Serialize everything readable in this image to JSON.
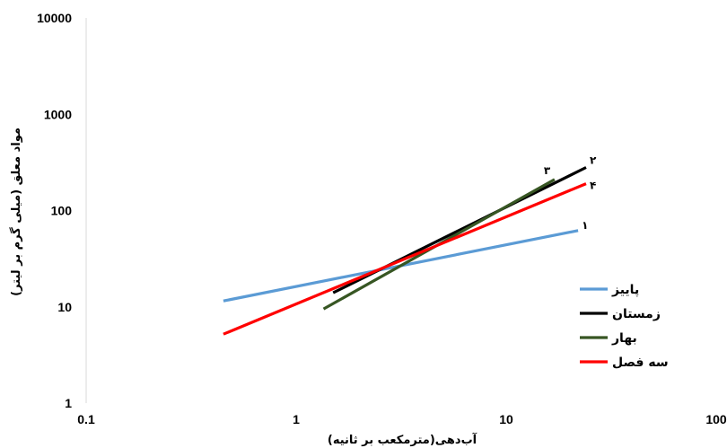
{
  "chart_data": {
    "type": "line",
    "xscale": "log",
    "yscale": "log",
    "xlim": [
      0.1,
      100
    ],
    "ylim": [
      1,
      10000
    ],
    "xticks": [
      "0.1",
      "1",
      "10",
      "100"
    ],
    "yticks": [
      "1",
      "10",
      "100",
      "1000",
      "10000"
    ],
    "xlabel": "آب‌دهی(مترمکعب بر ثانیه)",
    "ylabel": "مواد معلق (میلی گرم بر لیتر)",
    "grid": false,
    "legend_position": "right",
    "series": [
      {
        "name": "پاییز",
        "label": "۱",
        "color": "#5b9bd5",
        "x": [
          0.45,
          22
        ],
        "y": [
          11.5,
          62
        ]
      },
      {
        "name": "زمستان",
        "label": "۲",
        "color": "#000000",
        "x": [
          1.5,
          24
        ],
        "y": [
          14,
          280
        ]
      },
      {
        "name": "بهار",
        "label": "۳",
        "color": "#375623",
        "x": [
          1.35,
          17
        ],
        "y": [
          9.5,
          210
        ]
      },
      {
        "name": "سه فصل",
        "label": "۴",
        "color": "#ff0000",
        "x": [
          0.45,
          24
        ],
        "y": [
          5.2,
          190
        ]
      }
    ]
  }
}
